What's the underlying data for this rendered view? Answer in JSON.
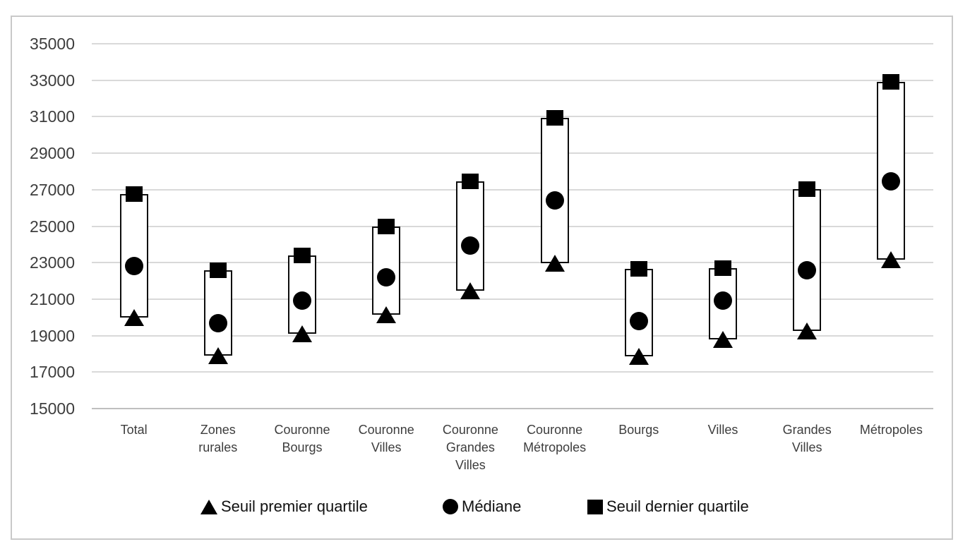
{
  "chart_data": {
    "type": "boxplot",
    "title": "",
    "xlabel": "",
    "ylabel": "",
    "ylim": [
      15000,
      35000
    ],
    "ytick_step": 2000,
    "yticks": [
      35000,
      33000,
      31000,
      29000,
      27000,
      25000,
      23000,
      21000,
      19000,
      17000,
      15000
    ],
    "grid": true,
    "legend_position": "bottom",
    "categories": [
      {
        "label": "Total",
        "lines": [
          "Total"
        ]
      },
      {
        "label": "Zones rurales",
        "lines": [
          "Zones",
          "rurales"
        ]
      },
      {
        "label": "Couronne Bourgs",
        "lines": [
          "Couronne",
          "Bourgs"
        ]
      },
      {
        "label": "Couronne Villes",
        "lines": [
          "Couronne",
          "Villes"
        ]
      },
      {
        "label": "Couronne Grandes Villes",
        "lines": [
          "Couronne",
          "Grandes",
          "Villes"
        ]
      },
      {
        "label": "Couronne Métropoles",
        "lines": [
          "Couronne",
          "Métropoles"
        ]
      },
      {
        "label": "Bourgs",
        "lines": [
          "Bourgs"
        ]
      },
      {
        "label": "Villes",
        "lines": [
          "Villes"
        ]
      },
      {
        "label": "Grandes Villes",
        "lines": [
          "Grandes",
          "Villes"
        ]
      },
      {
        "label": "Métropoles",
        "lines": [
          "Métropoles"
        ]
      }
    ],
    "series": [
      {
        "name": "Seuil premier quartile",
        "marker": "triangle",
        "values": [
          20000,
          17900,
          19100,
          20150,
          21450,
          22950,
          17850,
          18800,
          19250,
          23150
        ]
      },
      {
        "name": "Médiane",
        "marker": "circle",
        "values": [
          22800,
          19700,
          20900,
          22200,
          23950,
          26400,
          19800,
          20900,
          22600,
          27450
        ]
      },
      {
        "name": "Seuil dernier quartile",
        "marker": "square",
        "values": [
          26750,
          22600,
          23400,
          25000,
          27450,
          30950,
          22650,
          22700,
          27050,
          32900
        ]
      }
    ],
    "colors": {
      "marker": "#000000",
      "box_border": "#0d0d0d",
      "box_fill": "#ffffff",
      "gridline": "#d9d9d9",
      "axis_line": "#bfbfbf",
      "frame_border": "#c9c9c9",
      "tick_label": "#3d3d3d",
      "legend_text": "#111111",
      "background": "#ffffff"
    }
  }
}
